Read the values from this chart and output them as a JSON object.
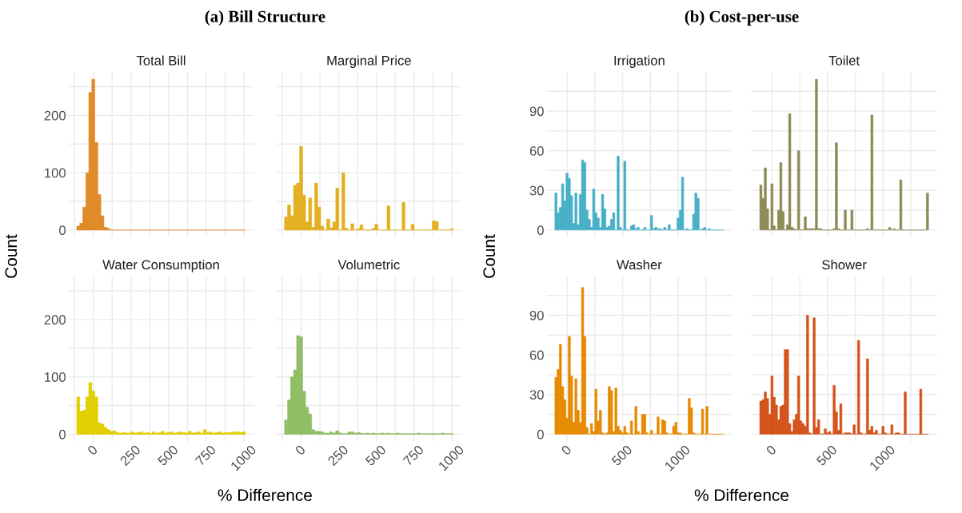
{
  "chart_data": [
    {
      "type": "histogram",
      "title": "(a) Bill Structure",
      "subtitle": "Total Bill",
      "ylabel": "Count",
      "color": "#e08a27",
      "bins": [
        -110,
        -90,
        -70,
        -50,
        -30,
        -10,
        10,
        30,
        50,
        70,
        90,
        110,
        130,
        150,
        170,
        190,
        210,
        230,
        250,
        270,
        290,
        310,
        330,
        350,
        370,
        390,
        410,
        430,
        450,
        470,
        490,
        510,
        530,
        550,
        570,
        590,
        610,
        630,
        650,
        670,
        690,
        710,
        730,
        750,
        770,
        790,
        810,
        830,
        850,
        870,
        890,
        910,
        930,
        950,
        970,
        990,
        1010
      ],
      "values": [
        7,
        12,
        40,
        100,
        240,
        263,
        153,
        62,
        25,
        5,
        3,
        0,
        0,
        0,
        0,
        0,
        0,
        0,
        0,
        0,
        0,
        0,
        0,
        0,
        0,
        0,
        0,
        0,
        0,
        0,
        0,
        0,
        0,
        0,
        0,
        0,
        0,
        0,
        0,
        0,
        0,
        0,
        0,
        0,
        0,
        0,
        0,
        0,
        0,
        0,
        0,
        0,
        0,
        0,
        0,
        0
      ],
      "xlim": [
        -166,
        1066
      ],
      "xticks": [
        {
          "value": -125,
          "label": null
        },
        0,
        {
          "value": 125,
          "label": null
        },
        250,
        {
          "value": 375,
          "label": null
        },
        500,
        {
          "value": 625,
          "label": null
        },
        750,
        {
          "value": 875,
          "label": null
        },
        1000
      ],
      "ylim": [
        -13,
        276
      ],
      "yticks": [
        0,
        {
          "value": 50,
          "label": null
        },
        100,
        {
          "value": 150,
          "label": null
        },
        200,
        {
          "value": 250,
          "label": null
        }
      ],
      "grid": true,
      "tick_labels": "y"
    },
    {
      "type": "histogram",
      "subtitle": "Marginal Price",
      "color": "#e3b020",
      "bins": [
        -110,
        -90,
        -70,
        -50,
        -30,
        -10,
        10,
        30,
        50,
        70,
        90,
        110,
        130,
        150,
        170,
        190,
        210,
        230,
        250,
        270,
        290,
        310,
        330,
        350,
        370,
        390,
        410,
        430,
        450,
        470,
        490,
        510,
        530,
        550,
        570,
        590,
        610,
        630,
        650,
        670,
        690,
        710,
        730,
        750,
        770,
        790,
        810,
        830,
        850,
        870,
        890,
        910,
        930,
        950,
        970,
        990,
        1010
      ],
      "values": [
        23,
        44,
        25,
        78,
        82,
        146,
        61,
        14,
        56,
        5,
        82,
        40,
        7,
        0,
        19,
        4,
        14,
        73,
        0,
        100,
        3,
        0,
        11,
        0,
        2,
        9,
        0,
        0,
        0,
        3,
        10,
        0,
        0,
        0,
        42,
        0,
        0,
        0,
        0,
        48,
        0,
        0,
        10,
        0,
        0,
        0,
        0,
        0,
        0,
        16,
        15,
        0,
        0,
        0,
        0,
        2
      ],
      "xlim": [
        -166,
        1066
      ],
      "xticks": [
        {
          "value": -125,
          "label": null
        },
        0,
        {
          "value": 125,
          "label": null
        },
        250,
        {
          "value": 375,
          "label": null
        },
        500,
        {
          "value": 625,
          "label": null
        },
        750,
        {
          "value": 875,
          "label": null
        },
        1000
      ],
      "ylim": [
        -13,
        276
      ],
      "yticks": [
        0,
        {
          "value": 50,
          "label": null
        },
        100,
        {
          "value": 150,
          "label": null
        },
        200,
        {
          "value": 250,
          "label": null
        }
      ],
      "grid": true,
      "tick_labels": false
    },
    {
      "type": "histogram",
      "subtitle": "Water Consumption",
      "xlabel": "% Difference",
      "color": "#e2cf00",
      "bins": [
        -110,
        -90,
        -70,
        -50,
        -30,
        -10,
        10,
        30,
        50,
        70,
        90,
        110,
        130,
        150,
        170,
        190,
        210,
        230,
        250,
        270,
        290,
        310,
        330,
        350,
        370,
        390,
        410,
        430,
        450,
        470,
        490,
        510,
        530,
        550,
        570,
        590,
        610,
        630,
        650,
        670,
        690,
        710,
        730,
        750,
        770,
        790,
        810,
        830,
        850,
        870,
        890,
        910,
        930,
        950,
        970,
        990,
        1010
      ],
      "values": [
        65,
        40,
        42,
        65,
        90,
        75,
        65,
        20,
        18,
        12,
        8,
        5,
        6,
        3,
        2,
        3,
        2,
        2,
        4,
        2,
        3,
        4,
        2,
        3,
        1,
        4,
        2,
        3,
        5,
        2,
        3,
        4,
        2,
        3,
        4,
        3,
        2,
        5,
        2,
        3,
        4,
        2,
        8,
        3,
        4,
        2,
        3,
        4,
        2,
        3,
        3,
        3,
        4,
        4,
        3,
        4
      ],
      "xlim": [
        -166,
        1066
      ],
      "xticks": [
        {
          "value": -125,
          "label": null
        },
        0,
        {
          "value": 125,
          "label": null
        },
        250,
        {
          "value": 375,
          "label": null
        },
        500,
        {
          "value": 625,
          "label": null
        },
        750,
        {
          "value": 875,
          "label": null
        },
        1000
      ],
      "ylim": [
        -13,
        276
      ],
      "yticks": [
        0,
        {
          "value": 50,
          "label": null
        },
        100,
        {
          "value": 150,
          "label": null
        },
        200,
        {
          "value": 250,
          "label": null
        }
      ],
      "grid": true
    },
    {
      "type": "histogram",
      "subtitle": "Volumetric",
      "color": "#8fbe65",
      "bins": [
        -110,
        -90,
        -70,
        -50,
        -30,
        -10,
        10,
        30,
        50,
        70,
        90,
        110,
        130,
        150,
        170,
        190,
        210,
        230,
        250,
        270,
        290,
        310,
        330,
        350,
        370,
        390,
        410,
        430,
        450,
        470,
        490,
        510,
        530,
        550,
        570,
        590,
        610,
        630,
        650,
        670,
        690,
        710,
        730,
        750,
        770,
        790,
        810,
        830,
        850,
        870,
        890,
        910,
        930,
        950,
        970,
        990,
        1010
      ],
      "values": [
        25,
        60,
        100,
        112,
        172,
        170,
        75,
        47,
        35,
        8,
        5,
        5,
        4,
        2,
        2,
        4,
        2,
        6,
        2,
        1,
        1,
        4,
        4,
        2,
        3,
        2,
        1,
        2,
        1,
        2,
        1,
        1,
        2,
        1,
        2,
        1,
        1,
        2,
        1,
        1,
        1,
        1,
        1,
        1,
        2,
        1,
        1,
        1,
        1,
        1,
        1,
        1,
        2,
        1,
        1,
        1
      ],
      "xlim": [
        -166,
        1066
      ],
      "xticks": [
        {
          "value": -125,
          "label": null
        },
        0,
        {
          "value": 125,
          "label": null
        },
        250,
        {
          "value": 375,
          "label": null
        },
        500,
        {
          "value": 625,
          "label": null
        },
        750,
        {
          "value": 875,
          "label": null
        },
        1000
      ],
      "ylim": [
        -13,
        276
      ],
      "yticks": [
        0,
        {
          "value": 50,
          "label": null
        },
        100,
        {
          "value": 150,
          "label": null
        },
        200,
        {
          "value": 250,
          "label": null
        }
      ],
      "grid": true,
      "tick_labels": "x"
    },
    {
      "type": "histogram",
      "title": "(b) Cost-per-use",
      "subtitle": "Irrigation",
      "ylabel": "Count",
      "color": "#47afc7",
      "bins": [
        -110,
        -90,
        -70,
        -50,
        -30,
        -10,
        10,
        30,
        50,
        70,
        90,
        110,
        130,
        150,
        170,
        190,
        210,
        230,
        250,
        270,
        290,
        310,
        330,
        350,
        370,
        390,
        410,
        430,
        450,
        470,
        490,
        510,
        530,
        550,
        570,
        590,
        610,
        630,
        650,
        670,
        690,
        710,
        730,
        750,
        770,
        790,
        810,
        830,
        850,
        870,
        890,
        910,
        930,
        950,
        970,
        990,
        1010,
        1030,
        1050,
        1070,
        1090,
        1110,
        1130,
        1150,
        1170,
        1190,
        1210,
        1230,
        1250,
        1270,
        1290,
        1310,
        1330,
        1350,
        1370,
        1390,
        1410
      ],
      "values": [
        28,
        13,
        17,
        35,
        22,
        43,
        39,
        26,
        5,
        28,
        4,
        27,
        53,
        51,
        15,
        8,
        2,
        31,
        13,
        9,
        2,
        27,
        16,
        2,
        3,
        8,
        13,
        0,
        56,
        2,
        0,
        52,
        0,
        0,
        3,
        4,
        1,
        2,
        0,
        0,
        2,
        0,
        0,
        11,
        1,
        2,
        1,
        1,
        0,
        2,
        0,
        4,
        0,
        0,
        0,
        9,
        15,
        40,
        0,
        1,
        0,
        0,
        12,
        28,
        24,
        0,
        1,
        2,
        0,
        1,
        0,
        0,
        0,
        0,
        0,
        0
      ],
      "xlim": [
        -186,
        1486
      ],
      "xticks": [
        0,
        {
          "value": 250,
          "label": null
        },
        500,
        {
          "value": 750,
          "label": null
        },
        1000,
        {
          "value": 1250,
          "label": null
        }
      ],
      "ylim": [
        -5.7,
        119.7
      ],
      "yticks": [
        0,
        {
          "value": 15,
          "label": null
        },
        30,
        {
          "value": 45,
          "label": null
        },
        60,
        {
          "value": 75,
          "label": null
        },
        90,
        {
          "value": 105,
          "label": null
        }
      ],
      "grid": true,
      "tick_labels": "y"
    },
    {
      "type": "histogram",
      "subtitle": "Toilet",
      "color": "#8b8c55",
      "bins": [
        -110,
        -90,
        -70,
        -50,
        -30,
        -10,
        10,
        30,
        50,
        70,
        90,
        110,
        130,
        150,
        170,
        190,
        210,
        230,
        250,
        270,
        290,
        310,
        330,
        350,
        370,
        390,
        410,
        430,
        450,
        470,
        490,
        510,
        530,
        550,
        570,
        590,
        610,
        630,
        650,
        670,
        690,
        710,
        730,
        750,
        770,
        790,
        810,
        830,
        850,
        870,
        890,
        910,
        930,
        950,
        970,
        990,
        1010,
        1030,
        1050,
        1070,
        1090,
        1110,
        1130,
        1150,
        1170,
        1190,
        1210,
        1230,
        1250,
        1270,
        1290,
        1310,
        1330,
        1350,
        1370,
        1390,
        1410
      ],
      "values": [
        34,
        24,
        47,
        16,
        0,
        35,
        3,
        0,
        15,
        51,
        14,
        0,
        4,
        88,
        2,
        1,
        0,
        60,
        0,
        0,
        10,
        1,
        1,
        1,
        1,
        114,
        1,
        1,
        0,
        0,
        0,
        0,
        0,
        1,
        66,
        1,
        0,
        0,
        15,
        0,
        0,
        15,
        0,
        0,
        0,
        0,
        0,
        0,
        1,
        0,
        87,
        0,
        0,
        0,
        0,
        0,
        0,
        0,
        2,
        0,
        1,
        0,
        0,
        38,
        0,
        0,
        0,
        0,
        0,
        0,
        0,
        0,
        0,
        0,
        0,
        28
      ],
      "xlim": [
        -186,
        1486
      ],
      "xticks": [
        0,
        {
          "value": 250,
          "label": null
        },
        500,
        {
          "value": 750,
          "label": null
        },
        1000,
        {
          "value": 1250,
          "label": null
        }
      ],
      "ylim": [
        -5.7,
        119.7
      ],
      "yticks": [
        0,
        {
          "value": 15,
          "label": null
        },
        30,
        {
          "value": 45,
          "label": null
        },
        60,
        {
          "value": 75,
          "label": null
        },
        90,
        {
          "value": 105,
          "label": null
        }
      ],
      "grid": true,
      "tick_labels": false
    },
    {
      "type": "histogram",
      "subtitle": "Washer",
      "xlabel": "% Difference",
      "color": "#e68a00",
      "bins": [
        -110,
        -90,
        -70,
        -50,
        -30,
        -10,
        10,
        30,
        50,
        70,
        90,
        110,
        130,
        150,
        170,
        190,
        210,
        230,
        250,
        270,
        290,
        310,
        330,
        350,
        370,
        390,
        410,
        430,
        450,
        470,
        490,
        510,
        530,
        550,
        570,
        590,
        610,
        630,
        650,
        670,
        690,
        710,
        730,
        750,
        770,
        790,
        810,
        830,
        850,
        870,
        890,
        910,
        930,
        950,
        970,
        990,
        1010,
        1030,
        1050,
        1070,
        1090,
        1110,
        1130,
        1150,
        1170,
        1190,
        1210,
        1230,
        1250,
        1270,
        1290,
        1310,
        1330,
        1350,
        1370,
        1390,
        1410
      ],
      "values": [
        43,
        49,
        68,
        36,
        26,
        12,
        74,
        44,
        9,
        42,
        18,
        9,
        111,
        74,
        5,
        0,
        8,
        2,
        34,
        10,
        18,
        1,
        0,
        1,
        36,
        33,
        2,
        35,
        6,
        3,
        1,
        6,
        1,
        0,
        10,
        0,
        21,
        2,
        0,
        15,
        15,
        1,
        0,
        3,
        0,
        0,
        13,
        0,
        11,
        10,
        1,
        0,
        0,
        6,
        9,
        1,
        1,
        0,
        0,
        0,
        27,
        20,
        1,
        0,
        0,
        0,
        19,
        0,
        21,
        0,
        0,
        0,
        0,
        0,
        0,
        0
      ],
      "xlim": [
        -186,
        1486
      ],
      "xticks": [
        0,
        {
          "value": 250,
          "label": null
        },
        500,
        {
          "value": 750,
          "label": null
        },
        1000,
        {
          "value": 1250,
          "label": null
        }
      ],
      "ylim": [
        -5.7,
        119.7
      ],
      "yticks": [
        0,
        {
          "value": 15,
          "label": null
        },
        30,
        {
          "value": 45,
          "label": null
        },
        60,
        {
          "value": 75,
          "label": null
        },
        90,
        {
          "value": 105,
          "label": null
        }
      ],
      "grid": true
    },
    {
      "type": "histogram",
      "subtitle": "Shower",
      "color": "#d4521a",
      "bins": [
        -110,
        -90,
        -70,
        -50,
        -30,
        -10,
        10,
        30,
        50,
        70,
        90,
        110,
        130,
        150,
        170,
        190,
        210,
        230,
        250,
        270,
        290,
        310,
        330,
        350,
        370,
        390,
        410,
        430,
        450,
        470,
        490,
        510,
        530,
        550,
        570,
        590,
        610,
        630,
        650,
        670,
        690,
        710,
        730,
        750,
        770,
        790,
        810,
        830,
        850,
        870,
        890,
        910,
        930,
        950,
        970,
        990,
        1010,
        1030,
        1050,
        1070,
        1090,
        1110,
        1130,
        1150,
        1170,
        1190,
        1210,
        1230,
        1250,
        1270,
        1290,
        1310,
        1330,
        1350,
        1370,
        1390,
        1410
      ],
      "values": [
        25,
        26,
        32,
        27,
        15,
        44,
        28,
        22,
        11,
        21,
        22,
        64,
        64,
        8,
        2,
        11,
        15,
        44,
        10,
        8,
        6,
        90,
        1,
        0,
        88,
        5,
        11,
        0,
        0,
        4,
        1,
        2,
        0,
        37,
        17,
        3,
        23,
        0,
        1,
        1,
        1,
        0,
        7,
        0,
        71,
        1,
        0,
        0,
        57,
        3,
        6,
        1,
        3,
        0,
        0,
        6,
        1,
        0,
        0,
        7,
        0,
        1,
        1,
        0,
        0,
        32,
        0,
        0,
        0,
        0,
        0,
        0,
        34,
        0,
        0,
        0
      ],
      "xlim": [
        -186,
        1486
      ],
      "xticks": [
        0,
        {
          "value": 250,
          "label": null
        },
        500,
        {
          "value": 750,
          "label": null
        },
        1000,
        {
          "value": 1250,
          "label": null
        }
      ],
      "ylim": [
        -5.7,
        119.7
      ],
      "yticks": [
        0,
        {
          "value": 15,
          "label": null
        },
        30,
        {
          "value": 45,
          "label": null
        },
        60,
        {
          "value": 75,
          "label": null
        },
        90,
        {
          "value": 105,
          "label": null
        }
      ],
      "grid": true,
      "tick_labels": "x"
    }
  ]
}
